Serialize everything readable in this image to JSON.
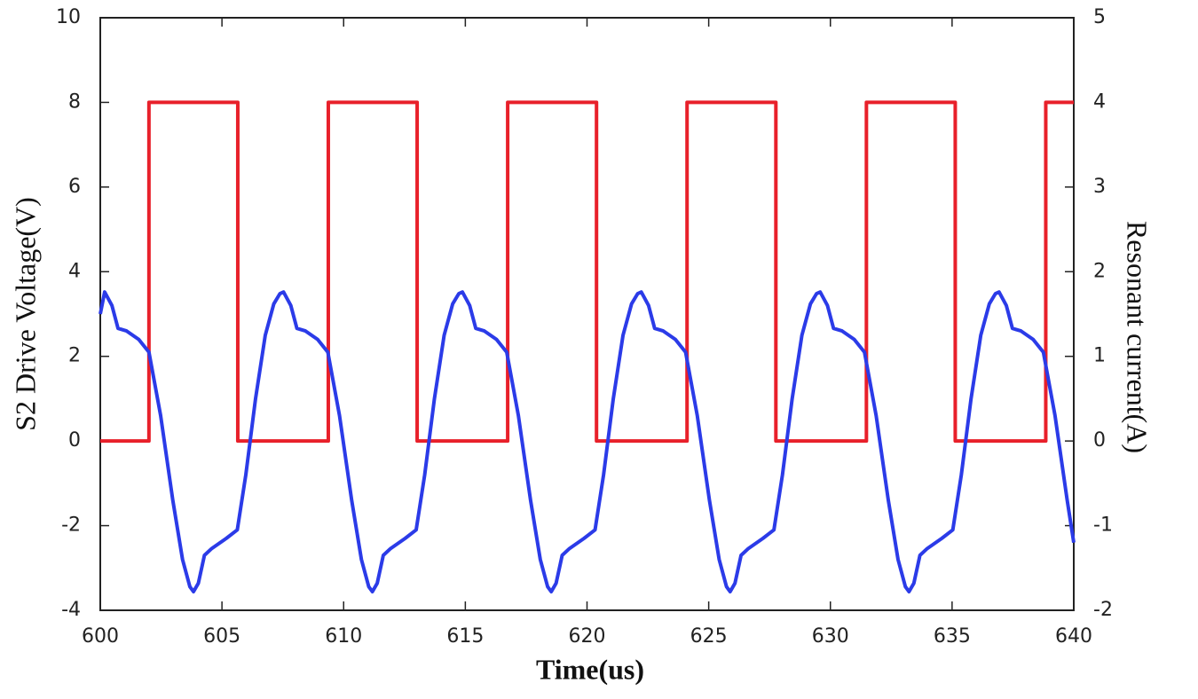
{
  "chart_data": {
    "type": "line",
    "xlabel": "Time(us)",
    "ylabel": "S2 Drive Voltage(V)",
    "y2label": "Resonant current(A)",
    "xlim": [
      600,
      640
    ],
    "xticks": [
      600,
      605,
      610,
      615,
      620,
      625,
      630,
      635,
      640
    ],
    "ylim": [
      -4,
      10
    ],
    "yticks": [
      -4,
      -2,
      0,
      2,
      4,
      6,
      8,
      10
    ],
    "y2lim": [
      -2,
      5
    ],
    "y2ticks": [
      -2,
      -1,
      0,
      1,
      2,
      3,
      4,
      5
    ],
    "grid": false,
    "series": [
      {
        "name": "S2 Drive Voltage",
        "color": "#e8202a",
        "x": [
          600,
          602.0,
          602.0,
          605.65,
          605.65,
          609.37,
          609.37,
          613.02,
          613.02,
          616.74,
          616.74,
          620.39,
          620.39,
          624.11,
          624.11,
          627.76,
          627.76,
          631.48,
          631.48,
          635.13,
          635.13,
          638.85,
          638.85,
          640
        ],
        "values": [
          0,
          0,
          8,
          8,
          0,
          0,
          8,
          8,
          0,
          0,
          8,
          8,
          0,
          0,
          8,
          8,
          0,
          0,
          8,
          8,
          0,
          0,
          8,
          8
        ]
      },
      {
        "name": "Resonant current",
        "color": "#2b3be8",
        "axis": "y2",
        "x": [
          600,
          600.18,
          600.48,
          600.73,
          601.08,
          601.58,
          602.0,
          602.48,
          602.98,
          603.38,
          603.68,
          603.83,
          604.03,
          604.28,
          604.58,
          605.18,
          605.63,
          605.98,
          606.38,
          606.78,
          607.13,
          607.38,
          607.53,
          607.83,
          608.08,
          608.43,
          608.93,
          609.35,
          609.83,
          610.33,
          610.73,
          611.03,
          611.18,
          611.38,
          611.63,
          611.93,
          612.53,
          612.98,
          613.33,
          613.73,
          614.13,
          614.48,
          614.73,
          614.88,
          615.18,
          615.43,
          615.78,
          616.28,
          616.7,
          617.18,
          617.68,
          618.08,
          618.38,
          618.53,
          618.73,
          618.98,
          619.28,
          619.88,
          620.33,
          620.68,
          621.08,
          621.48,
          621.83,
          622.08,
          622.23,
          622.53,
          622.78,
          623.13,
          623.63,
          624.05,
          624.53,
          625.03,
          625.43,
          625.73,
          625.88,
          626.08,
          626.33,
          626.63,
          627.23,
          627.68,
          628.03,
          628.43,
          628.83,
          629.18,
          629.43,
          629.58,
          629.88,
          630.13,
          630.48,
          630.98,
          631.4,
          631.88,
          632.38,
          632.78,
          633.08,
          633.23,
          633.43,
          633.68,
          633.98,
          634.58,
          635.03,
          635.38,
          635.78,
          636.18,
          636.53,
          636.78,
          636.93,
          637.23,
          637.48,
          637.83,
          638.33,
          638.75,
          639.23,
          639.73,
          640
        ],
        "values": [
          1.5,
          1.76,
          1.6,
          1.33,
          1.3,
          1.2,
          1.05,
          0.3,
          -0.7,
          -1.4,
          -1.72,
          -1.78,
          -1.68,
          -1.35,
          -1.27,
          -1.15,
          -1.05,
          -0.4,
          0.5,
          1.25,
          1.62,
          1.74,
          1.76,
          1.6,
          1.33,
          1.3,
          1.2,
          1.05,
          0.3,
          -0.7,
          -1.4,
          -1.72,
          -1.78,
          -1.68,
          -1.35,
          -1.27,
          -1.15,
          -1.05,
          -0.4,
          0.5,
          1.25,
          1.62,
          1.74,
          1.76,
          1.6,
          1.33,
          1.3,
          1.2,
          1.05,
          0.3,
          -0.7,
          -1.4,
          -1.72,
          -1.78,
          -1.68,
          -1.35,
          -1.27,
          -1.15,
          -1.05,
          -0.4,
          0.5,
          1.25,
          1.62,
          1.74,
          1.76,
          1.6,
          1.33,
          1.3,
          1.2,
          1.05,
          0.3,
          -0.7,
          -1.4,
          -1.72,
          -1.78,
          -1.68,
          -1.35,
          -1.27,
          -1.15,
          -1.05,
          -0.4,
          0.5,
          1.25,
          1.62,
          1.74,
          1.76,
          1.6,
          1.33,
          1.3,
          1.2,
          1.05,
          0.3,
          -0.7,
          -1.4,
          -1.72,
          -1.78,
          -1.68,
          -1.35,
          -1.27,
          -1.15,
          -1.05,
          -0.4,
          0.5,
          1.25,
          1.62,
          1.74,
          1.76,
          1.6,
          1.33,
          1.3,
          1.2,
          1.05,
          0.3,
          -0.7,
          -1.2
        ]
      }
    ]
  }
}
